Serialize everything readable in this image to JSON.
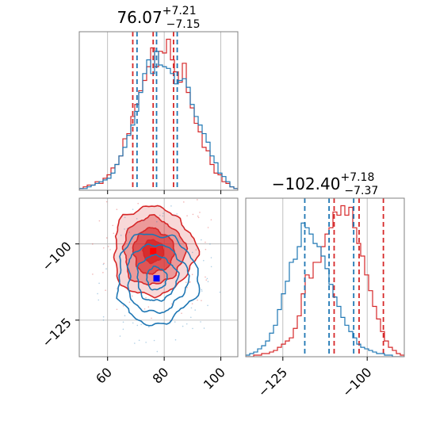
{
  "colors": {
    "red": "#d62728",
    "blue": "#1f77b4",
    "grid": "#b0b0b0",
    "frame": "#808080"
  },
  "chart_data": [
    {
      "type": "histogram",
      "panel": "top-left",
      "parameter": "param_1",
      "title": {
        "median": "76.07",
        "plus": "+7.21",
        "minus": "−7.15"
      },
      "xlim": [
        50,
        106
      ],
      "grid": true,
      "ticks": [
        60,
        80,
        100
      ],
      "series": [
        {
          "color": "red",
          "quantiles": [
            68.9,
            76.1,
            83.3
          ],
          "hist": [
            0.01,
            0.02,
            0.03,
            0.03,
            0.05,
            0.04,
            0.07,
            0.09,
            0.13,
            0.15,
            0.2,
            0.3,
            0.33,
            0.43,
            0.5,
            0.58,
            0.64,
            0.72,
            0.83,
            0.72,
            0.81,
            0.8,
            0.88,
            0.76,
            0.69,
            0.63,
            0.74,
            0.57,
            0.48,
            0.39,
            0.34,
            0.25,
            0.23,
            0.15,
            0.1,
            0.09,
            0.05,
            0.04,
            0.02,
            0.01
          ]
        },
        {
          "color": "blue",
          "quantiles": [
            70.4,
            77.3,
            84.6
          ],
          "hist": [
            0.01,
            0.01,
            0.02,
            0.03,
            0.04,
            0.05,
            0.06,
            0.07,
            0.1,
            0.15,
            0.2,
            0.25,
            0.32,
            0.38,
            0.46,
            0.57,
            0.68,
            0.76,
            0.68,
            0.81,
            0.73,
            0.72,
            0.71,
            0.68,
            0.62,
            0.64,
            0.65,
            0.6,
            0.5,
            0.43,
            0.38,
            0.33,
            0.28,
            0.2,
            0.16,
            0.1,
            0.08,
            0.05,
            0.02,
            0.01
          ]
        }
      ]
    },
    {
      "type": "histogram",
      "panel": "bottom-right",
      "parameter": "param_2",
      "title": {
        "median": "−102.40",
        "plus": "+7.18",
        "minus": "−7.37"
      },
      "xlim": [
        -136,
        -89
      ],
      "grid": true,
      "ticks": [
        -125,
        -100
      ],
      "tick_labels": [
        "−125",
        "−100"
      ],
      "series": [
        {
          "color": "red",
          "quantiles": [
            -109.8,
            -102.4,
            -95.2
          ],
          "hist": [
            0.0,
            0.0,
            0.01,
            0.01,
            0.02,
            0.02,
            0.03,
            0.04,
            0.06,
            0.08,
            0.1,
            0.12,
            0.18,
            0.26,
            0.4,
            0.52,
            0.5,
            0.6,
            0.6,
            0.7,
            0.78,
            0.82,
            0.92,
            0.9,
            0.96,
            0.9,
            0.95,
            0.82,
            0.72,
            0.64,
            0.52,
            0.42,
            0.32,
            0.24,
            0.16,
            0.1,
            0.06,
            0.04,
            0.02,
            0.01
          ]
        },
        {
          "color": "blue",
          "quantiles": [
            -118.5,
            -111.3,
            -104.0
          ],
          "hist": [
            0.01,
            0.02,
            0.03,
            0.05,
            0.07,
            0.1,
            0.15,
            0.2,
            0.3,
            0.4,
            0.48,
            0.6,
            0.62,
            0.7,
            0.85,
            0.82,
            0.78,
            0.72,
            0.7,
            0.64,
            0.56,
            0.46,
            0.38,
            0.32,
            0.25,
            0.2,
            0.16,
            0.12,
            0.08,
            0.06,
            0.05,
            0.04,
            0.03,
            0.02,
            0.02,
            0.01,
            0.01,
            0.0,
            0.0,
            0.0
          ]
        }
      ]
    },
    {
      "type": "contour",
      "panel": "bottom-left",
      "xlim": [
        50,
        106
      ],
      "ylim": [
        -137,
        -85
      ],
      "grid": true,
      "xticks": [
        60,
        80,
        100
      ],
      "xtick_labels": [
        "60",
        "80",
        "100"
      ],
      "yticks": [
        -100,
        -125
      ],
      "ytick_labels": [
        "−100",
        "−125"
      ],
      "series": [
        {
          "color": "red",
          "filled": true,
          "truth": [
            76.1,
            -102.4
          ],
          "sigma": [
            7.2,
            7.3
          ],
          "levels": [
            0.5,
            1.0,
            1.5,
            2.0
          ]
        },
        {
          "color": "blue",
          "filled": false,
          "truth": [
            77.3,
            -111.3
          ],
          "sigma": [
            7.1,
            7.4
          ],
          "levels": [
            0.5,
            1.0,
            1.5,
            2.0
          ]
        }
      ]
    }
  ]
}
